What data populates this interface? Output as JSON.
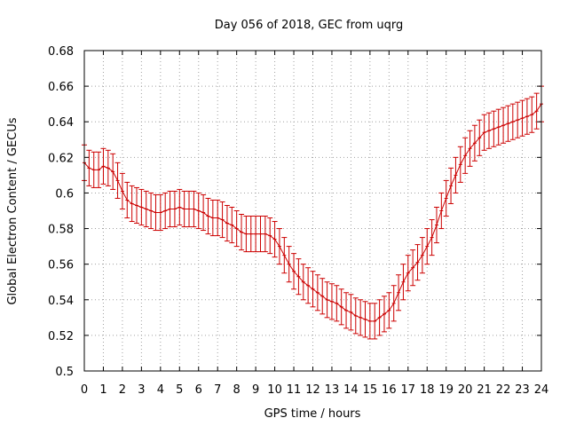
{
  "chart_data": {
    "type": "line",
    "title": "Day 056 of 2018, GEC from uqrg",
    "xlabel": "GPS time / hours",
    "ylabel": "Global Electron Content / GECUs",
    "xlim": [
      0,
      24
    ],
    "ylim": [
      0.5,
      0.68
    ],
    "x_ticks": [
      0,
      1,
      2,
      3,
      4,
      5,
      6,
      7,
      8,
      9,
      10,
      11,
      12,
      13,
      14,
      15,
      16,
      17,
      18,
      19,
      20,
      21,
      22,
      23,
      24
    ],
    "y_ticks": [
      0.5,
      0.52,
      0.54,
      0.56,
      0.58,
      0.6,
      0.62,
      0.64,
      0.66,
      0.68
    ],
    "y_tick_labels": [
      "0.5",
      "0.52",
      "0.54",
      "0.56",
      "0.58",
      "0.6",
      "0.62",
      "0.64",
      "0.66",
      "0.68"
    ],
    "grid": true,
    "color": "#cc0000",
    "error_half_width": 0.01,
    "x": [
      0.0,
      0.25,
      0.5,
      0.75,
      1.0,
      1.25,
      1.5,
      1.75,
      2.0,
      2.25,
      2.5,
      2.75,
      3.0,
      3.25,
      3.5,
      3.75,
      4.0,
      4.25,
      4.5,
      4.75,
      5.0,
      5.25,
      5.5,
      5.75,
      6.0,
      6.25,
      6.5,
      6.75,
      7.0,
      7.25,
      7.5,
      7.75,
      8.0,
      8.25,
      8.5,
      8.75,
      9.0,
      9.25,
      9.5,
      9.75,
      10.0,
      10.25,
      10.5,
      10.75,
      11.0,
      11.25,
      11.5,
      11.75,
      12.0,
      12.25,
      12.5,
      12.75,
      13.0,
      13.25,
      13.5,
      13.75,
      14.0,
      14.25,
      14.5,
      14.75,
      15.0,
      15.25,
      15.5,
      15.75,
      16.0,
      16.25,
      16.5,
      16.75,
      17.0,
      17.25,
      17.5,
      17.75,
      18.0,
      18.25,
      18.5,
      18.75,
      19.0,
      19.25,
      19.5,
      19.75,
      20.0,
      20.25,
      20.5,
      20.75,
      21.0,
      21.25,
      21.5,
      21.75,
      22.0,
      22.25,
      22.5,
      22.75,
      23.0,
      23.25,
      23.5,
      23.75,
      24.0
    ],
    "values": [
      0.617,
      0.614,
      0.613,
      0.613,
      0.615,
      0.614,
      0.612,
      0.607,
      0.601,
      0.596,
      0.594,
      0.593,
      0.592,
      0.591,
      0.59,
      0.589,
      0.589,
      0.59,
      0.591,
      0.591,
      0.592,
      0.591,
      0.591,
      0.591,
      0.59,
      0.589,
      0.587,
      0.586,
      0.586,
      0.585,
      0.583,
      0.582,
      0.58,
      0.578,
      0.577,
      0.577,
      0.577,
      0.577,
      0.577,
      0.576,
      0.574,
      0.57,
      0.565,
      0.56,
      0.556,
      0.553,
      0.55,
      0.548,
      0.546,
      0.544,
      0.542,
      0.54,
      0.539,
      0.538,
      0.536,
      0.534,
      0.533,
      0.531,
      0.53,
      0.529,
      0.528,
      0.528,
      0.53,
      0.532,
      0.534,
      0.538,
      0.544,
      0.55,
      0.555,
      0.558,
      0.561,
      0.565,
      0.57,
      0.575,
      0.582,
      0.59,
      0.597,
      0.604,
      0.61,
      0.616,
      0.621,
      0.625,
      0.628,
      0.631,
      0.634,
      0.635,
      0.636,
      0.637,
      0.638,
      0.639,
      0.64,
      0.641,
      0.642,
      0.643,
      0.644,
      0.646,
      0.65
    ]
  }
}
